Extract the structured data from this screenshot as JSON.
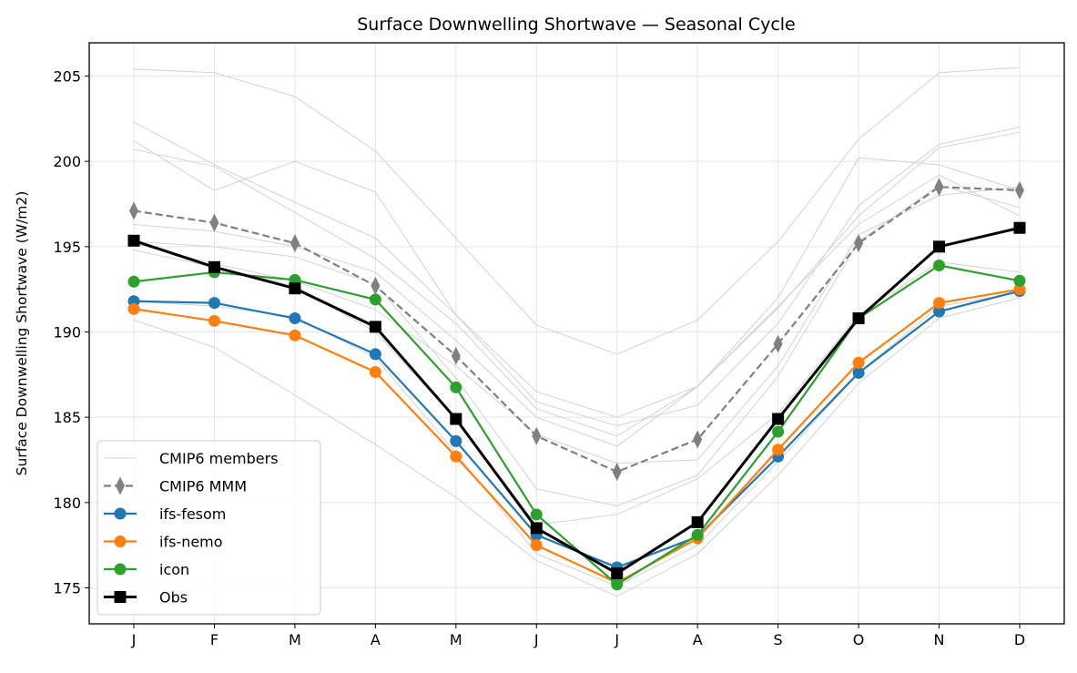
{
  "chart_data": {
    "type": "line",
    "title": "Surface Downwelling Shortwave — Seasonal Cycle",
    "xlabel": "",
    "ylabel": "Surface Downwelling Shortwave (W/m2)",
    "categories": [
      "J",
      "F",
      "M",
      "A",
      "M",
      "J",
      "J",
      "A",
      "S",
      "O",
      "N",
      "D"
    ],
    "ylim": [
      172.9,
      207.0
    ],
    "yticks": [
      175,
      180,
      185,
      190,
      195,
      200,
      205
    ],
    "grid": true,
    "legend_position": "lower-left",
    "members_label": "CMIP6 members",
    "members_color": "#d3d3d3",
    "members": [
      [
        205.4,
        205.2,
        203.8,
        200.6,
        195.5,
        190.4,
        188.7,
        190.7,
        195.3,
        201.3,
        205.2,
        205.5
      ],
      [
        202.3,
        199.8,
        197.6,
        195.5,
        191.0,
        186.5,
        185.0,
        186.8,
        192.0,
        200.2,
        199.8,
        198.3
      ],
      [
        201.2,
        198.3,
        200.0,
        198.2,
        191.0,
        185.9,
        184.5,
        185.7,
        190.5,
        197.4,
        201.0,
        202.0
      ],
      [
        200.7,
        199.7,
        197.0,
        194.3,
        190.5,
        185.5,
        183.9,
        186.8,
        191.4,
        196.8,
        200.8,
        201.7
      ],
      [
        196.3,
        195.9,
        195.0,
        193.5,
        189.5,
        185.0,
        183.3,
        186.8,
        191.5,
        196.3,
        199.2,
        196.8
      ],
      [
        195.2,
        194.0,
        193.0,
        191.3,
        188.0,
        184.0,
        182.3,
        182.5,
        188.0,
        195.7,
        198.0,
        198.5
      ],
      [
        195.3,
        195.0,
        194.4,
        192.8,
        187.3,
        180.8,
        179.8,
        181.6,
        187.4,
        195.3,
        198.6,
        197.3
      ],
      [
        194.8,
        193.8,
        192.7,
        190.0,
        184.9,
        178.7,
        179.3,
        181.4,
        185.2,
        191.0,
        194.1,
        193.5
      ],
      [
        190.7,
        189.1,
        186.3,
        183.4,
        180.3,
        176.6,
        174.5,
        177.0,
        181.6,
        187.0,
        190.8,
        192.0
      ],
      [
        191.8,
        191.5,
        190.9,
        188.5,
        182.9,
        177.0,
        175.1,
        177.5,
        182.4,
        187.6,
        191.5,
        192.3
      ]
    ],
    "series": [
      {
        "name": "CMIP6 MMM",
        "color": "#808080",
        "marker": "thin-diamond",
        "dashed": true,
        "values": [
          197.1,
          196.4,
          195.2,
          192.7,
          188.6,
          183.9,
          181.8,
          183.7,
          189.3,
          195.2,
          198.5,
          198.3
        ]
      },
      {
        "name": "ifs-fesom",
        "color": "#1f77b4",
        "marker": "circle",
        "dashed": false,
        "values": [
          191.8,
          191.7,
          190.8,
          188.7,
          183.6,
          178.1,
          176.2,
          178.0,
          182.7,
          187.6,
          191.2,
          192.4
        ]
      },
      {
        "name": "ifs-nemo",
        "color": "#ff7f0e",
        "marker": "circle",
        "dashed": false,
        "values": [
          191.35,
          190.65,
          189.8,
          187.65,
          182.7,
          177.5,
          175.3,
          177.9,
          183.1,
          188.2,
          191.7,
          192.5
        ]
      },
      {
        "name": "icon",
        "color": "#2ca02c",
        "marker": "circle",
        "dashed": false,
        "values": [
          192.95,
          193.5,
          193.05,
          191.9,
          186.75,
          179.3,
          175.2,
          178.1,
          184.15,
          190.8,
          193.9,
          193.0
        ]
      },
      {
        "name": "Obs",
        "color": "#000000",
        "marker": "square",
        "dashed": false,
        "values": [
          195.35,
          193.8,
          192.55,
          190.3,
          184.9,
          178.5,
          175.85,
          178.85,
          184.9,
          190.8,
          195.0,
          196.1
        ]
      }
    ]
  }
}
